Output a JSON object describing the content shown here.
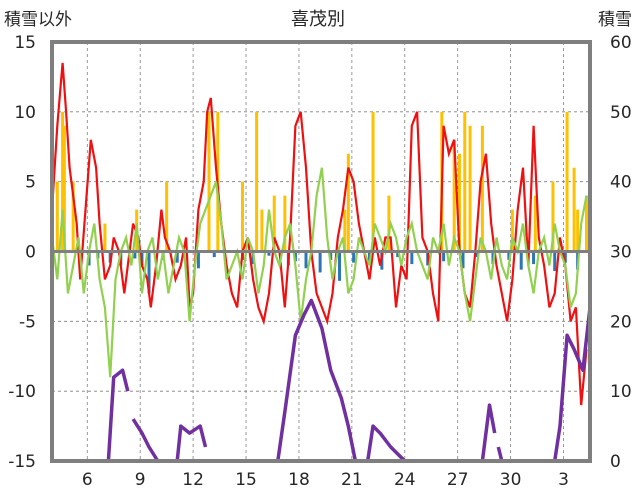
{
  "chart_data": {
    "type": "line",
    "title": "喜茂別",
    "ylabel_left": "積雪以外",
    "ylabel_right": "積雪",
    "y_left": {
      "min": -15,
      "max": 15,
      "ticks": [
        15,
        10,
        5,
        0,
        -5,
        -10,
        -15
      ]
    },
    "y_right": {
      "min": 0,
      "max": 60,
      "ticks": [
        60,
        50,
        40,
        30,
        20,
        10,
        0
      ]
    },
    "x": {
      "start_day": 4,
      "end_day": 34.5,
      "tick_days": [
        6,
        9,
        12,
        15,
        18,
        21,
        24,
        27,
        30,
        33
      ],
      "tick_labels": [
        "6",
        "9",
        "12",
        "15",
        "18",
        "21",
        "24",
        "27",
        "30",
        "3"
      ]
    },
    "grid": true,
    "colors": {
      "temperature": "#ee1111",
      "precipitation": "#ffc000",
      "series_blue": "#2e75b6",
      "series_green": "#92d050",
      "snow_depth": "#7030a0",
      "frame": "#7f7f7f",
      "grid": "#7f7f7f"
    },
    "series": [
      {
        "key": "precip",
        "day": [
          4.3,
          4.6,
          4.7,
          5.2,
          7.0,
          8.8,
          10.5,
          12.9,
          13.4,
          14.8,
          15.6,
          15.9,
          16.6,
          17.2,
          20.6,
          20.8,
          22.2,
          23.1,
          26.1,
          26.8,
          27.1,
          27.4,
          27.7,
          28.4,
          30.1,
          31.4,
          32.4,
          33.2,
          33.6,
          33.8,
          34.3
        ],
        "value": [
          5,
          10,
          9,
          5,
          2,
          3,
          5,
          10,
          10,
          5,
          10,
          3,
          4,
          4,
          3,
          7,
          10,
          4,
          10,
          8,
          7,
          10,
          9,
          9,
          3,
          4,
          5,
          10,
          6,
          3,
          4
        ]
      },
      {
        "key": "blue",
        "day": [
          6.1,
          6.6,
          7.3,
          7.9,
          8.7,
          9.1,
          9.5,
          10.3,
          11.1,
          12.3,
          13.2,
          14.8,
          15.4,
          16.3,
          17.4,
          17.8,
          18.4,
          19.2,
          19.8,
          20.3,
          21.1,
          22.0,
          22.7,
          23.6,
          24.4,
          25.3,
          26.2,
          27.3,
          28.1,
          29.0,
          29.9,
          30.6,
          31.3,
          32.5,
          33.1,
          33.8
        ],
        "value": [
          -1,
          -0.5,
          -0.8,
          -1,
          -0.5,
          -1.1,
          -3,
          -0.6,
          -0.8,
          -1.2,
          -0.4,
          -0.6,
          -0.9,
          -0.3,
          -1,
          -0.7,
          -1.2,
          -1.5,
          -0.6,
          -2.1,
          -0.8,
          -0.7,
          -1.3,
          -0.4,
          -0.9,
          -1,
          -0.7,
          -1.2,
          -0.4,
          -0.9,
          -0.6,
          -1.3,
          -0.9,
          -1.4,
          -0.8,
          -1.3
        ]
      },
      {
        "key": "temperature",
        "day": [
          4.0,
          4.3,
          4.5,
          4.6,
          4.8,
          5.0,
          5.2,
          5.4,
          5.6,
          5.9,
          6.2,
          6.5,
          6.7,
          7.0,
          7.3,
          7.5,
          7.8,
          8.1,
          8.3,
          8.6,
          8.9,
          9.1,
          9.4,
          9.6,
          9.9,
          10.2,
          10.4,
          10.7,
          11.0,
          11.3,
          11.6,
          11.8,
          12.0,
          12.3,
          12.6,
          12.8,
          13.0,
          13.3,
          13.6,
          13.9,
          14.2,
          14.5,
          14.8,
          15.1,
          15.4,
          15.7,
          16.0,
          16.3,
          16.6,
          16.9,
          17.2,
          17.5,
          17.8,
          18.1,
          18.4,
          18.7,
          19.0,
          19.3,
          19.6,
          19.9,
          20.2,
          20.5,
          20.8,
          21.1,
          21.4,
          21.7,
          22.0,
          22.3,
          22.6,
          22.9,
          23.2,
          23.5,
          23.8,
          24.1,
          24.4,
          24.7,
          25.0,
          25.3,
          25.6,
          25.9,
          26.2,
          26.5,
          26.8,
          27.1,
          27.4,
          27.7,
          28.0,
          28.3,
          28.6,
          28.9,
          29.2,
          29.5,
          29.8,
          30.1,
          30.4,
          30.7,
          31.0,
          31.3,
          31.6,
          31.9,
          32.2,
          32.5,
          32.8,
          33.1,
          33.4,
          33.7,
          34.0,
          34.3
        ],
        "value": [
          3,
          9,
          12,
          13.5,
          10,
          6,
          4,
          2,
          -2,
          3,
          8,
          6,
          2,
          -2,
          -1,
          1,
          0,
          -3,
          -1,
          2,
          1,
          -1,
          -2,
          -4,
          -1,
          3,
          1,
          0,
          -2,
          -1,
          1,
          -4,
          -3,
          3,
          5,
          10,
          11,
          6,
          2,
          -1,
          -3,
          -4,
          0,
          1,
          -2,
          -4,
          -5,
          -3,
          1,
          0,
          -4,
          1,
          9,
          10,
          6,
          0,
          -3,
          -4,
          -5,
          -3,
          1,
          3,
          6,
          5,
          2,
          0,
          -2,
          1,
          -1,
          1,
          1,
          -4,
          -1,
          -2,
          9,
          10,
          1,
          0,
          -3,
          -5,
          9,
          7,
          8,
          0,
          -3,
          -4,
          0,
          5,
          7,
          2,
          -1,
          -3,
          -5,
          -2,
          3,
          6,
          -1,
          9,
          1,
          -1,
          -4,
          -3,
          1,
          -1,
          -5,
          -4,
          -11,
          -7
        ]
      },
      {
        "key": "green",
        "day": [
          4.0,
          4.3,
          4.6,
          4.9,
          5.2,
          5.5,
          5.8,
          6.1,
          6.4,
          6.7,
          7.0,
          7.3,
          7.6,
          7.9,
          8.2,
          8.5,
          8.8,
          9.1,
          9.4,
          9.7,
          10.0,
          10.3,
          10.6,
          10.9,
          11.2,
          11.5,
          11.8,
          12.1,
          12.4,
          12.7,
          13.0,
          13.3,
          13.6,
          13.9,
          14.2,
          14.5,
          14.8,
          15.1,
          15.4,
          15.7,
          16.0,
          16.3,
          16.6,
          16.9,
          17.2,
          17.5,
          17.8,
          18.1,
          18.4,
          18.7,
          19.0,
          19.3,
          19.6,
          19.9,
          20.2,
          20.5,
          20.8,
          21.1,
          21.4,
          21.7,
          22.0,
          22.3,
          22.6,
          22.9,
          23.2,
          23.5,
          23.8,
          24.1,
          24.4,
          24.7,
          25.0,
          25.3,
          25.6,
          25.9,
          26.2,
          26.5,
          26.8,
          27.1,
          27.4,
          27.7,
          28.0,
          28.3,
          28.6,
          28.9,
          29.2,
          29.5,
          29.8,
          30.1,
          30.4,
          30.7,
          31.0,
          31.3,
          31.6,
          31.9,
          32.2,
          32.5,
          32.8,
          33.1,
          33.4,
          33.7,
          34.0,
          34.3
        ],
        "value": [
          1,
          -2,
          3,
          -3,
          -1,
          1,
          -3,
          0,
          2,
          -2,
          -4,
          -9,
          -2,
          0,
          1,
          -1,
          2,
          -3,
          0,
          1,
          -2,
          0,
          -3,
          -1,
          1,
          0,
          -5,
          -1,
          2,
          3,
          4,
          5,
          2,
          -2,
          -1,
          0,
          -2,
          1,
          0,
          -3,
          -1,
          3,
          0,
          -1,
          1,
          2,
          -1,
          -5,
          -2,
          0,
          4,
          6,
          1,
          -2,
          0,
          1,
          -3,
          -2,
          1,
          0,
          -1,
          2,
          1,
          0,
          2,
          1,
          -1,
          1,
          2,
          0,
          -1,
          -2,
          1,
          0,
          2,
          -1,
          1,
          0,
          -3,
          -5,
          -2,
          1,
          0,
          -2,
          1,
          -1,
          -2,
          1,
          0,
          2,
          -1,
          -3,
          0,
          1,
          -1,
          2,
          0,
          -1,
          -4,
          -3,
          2,
          4
        ]
      },
      {
        "key": "snow_depth",
        "segments": [
          {
            "day": [
              4.0,
              7.2,
              7.5,
              8.0,
              8.3
            ],
            "value": [
              0,
              0,
              12,
              13,
              10
            ]
          },
          {
            "day": [
              8.6,
              9.1,
              9.5,
              10.0
            ],
            "value": [
              6,
              4,
              2,
              0
            ]
          },
          {
            "day": [
              10.0,
              11.1,
              11.3,
              11.8,
              12.4,
              12.7
            ],
            "value": [
              0,
              0,
              5,
              4,
              5,
              2
            ]
          },
          {
            "day": [
              12.7,
              16.8,
              17.2,
              17.8,
              18.3,
              18.7,
              19.3,
              19.8,
              20.4,
              20.8,
              21.2
            ],
            "value": [
              0,
              0,
              7,
              18,
              21,
              23,
              19,
              13,
              9,
              5,
              0
            ]
          },
          {
            "day": [
              21.2,
              21.9,
              22.2,
              22.6,
              23.2,
              24.0,
              28.4,
              28.8,
              29.1
            ],
            "value": [
              0,
              0,
              5,
              4,
              2,
              0,
              0,
              8,
              4
            ]
          },
          {
            "day": [
              29.3,
              29.5
            ],
            "value": [
              2,
              0
            ]
          },
          {
            "day": [
              29.5,
              32.5,
              32.8,
              33.2,
              33.6,
              34.1,
              34.5
            ],
            "value": [
              0,
              0,
              5,
              18,
              16,
              13,
              22
            ]
          }
        ]
      }
    ]
  }
}
